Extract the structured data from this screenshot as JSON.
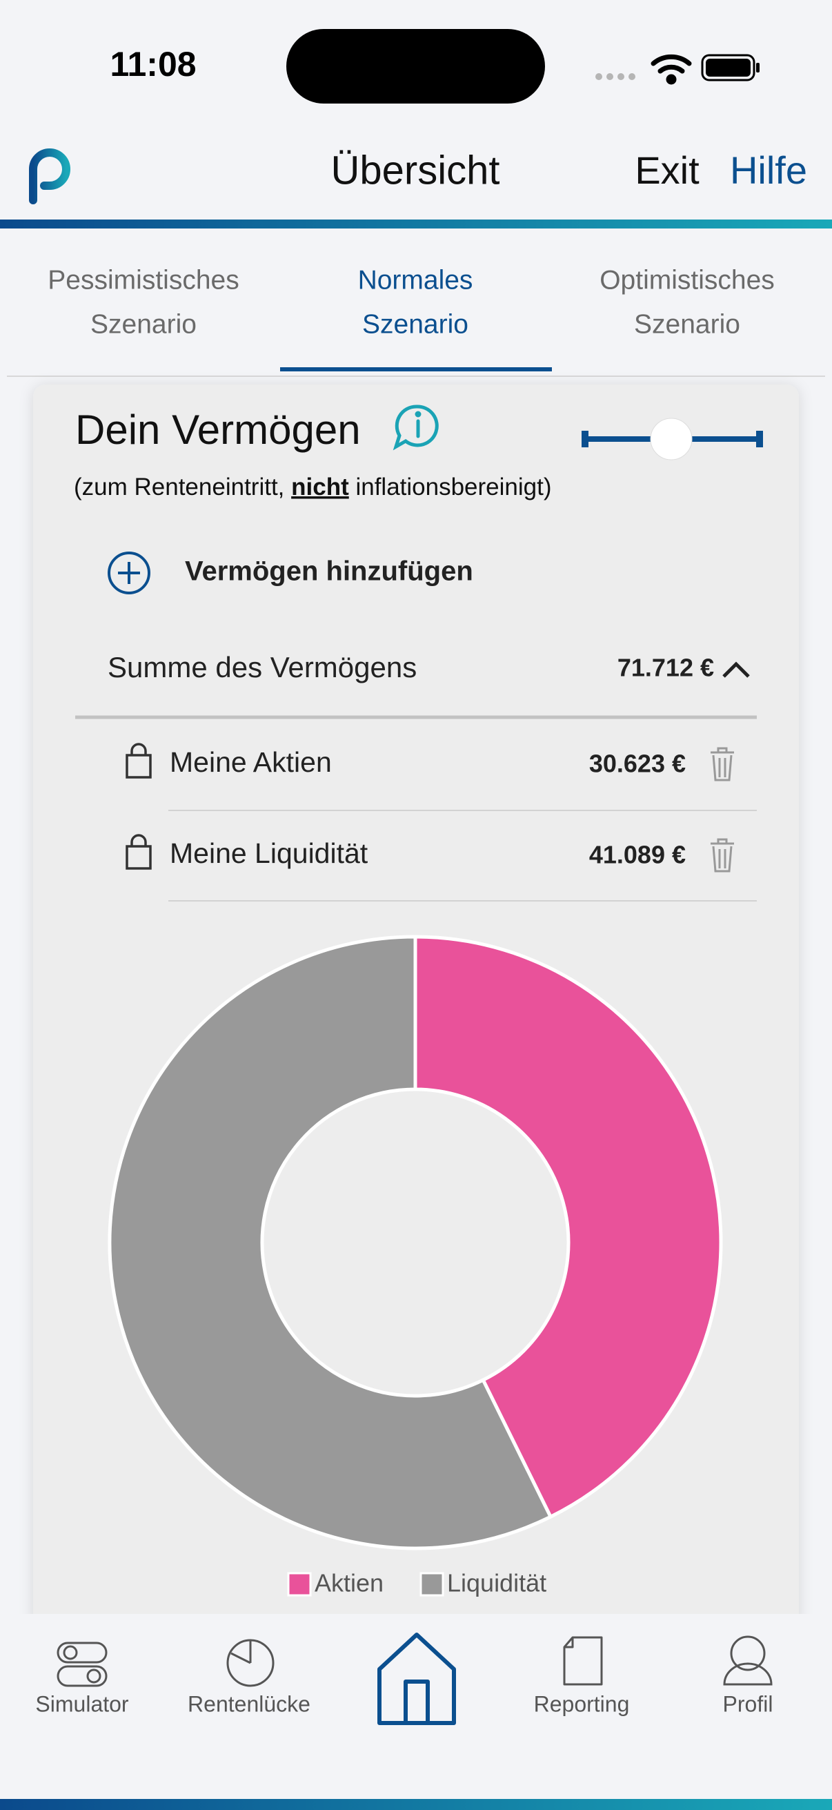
{
  "status_bar": {
    "time": "11:08"
  },
  "header": {
    "title": "Übersicht",
    "exit": "Exit",
    "help": "Hilfe"
  },
  "tabs": [
    {
      "lines": [
        "Pessimistisches",
        "Szenario"
      ]
    },
    {
      "lines": [
        "Normales",
        "Szenario"
      ]
    },
    {
      "lines": [
        "Optimistisches",
        "Szenario"
      ]
    }
  ],
  "card": {
    "title": "Dein Vermögen",
    "subtitle_before": "(zum Renteneintritt, ",
    "subtitle_emphasis": "nicht",
    "subtitle_after": " inflationsbereinigt)",
    "add_label": "Vermögen hinzufügen",
    "sum_label": "Summe des Vermögens",
    "sum_value": "71.712 €",
    "assets": [
      {
        "name": "Meine Aktien",
        "amount": "30.623 €"
      },
      {
        "name": "Meine Liquidität",
        "amount": "41.089 €"
      }
    ]
  },
  "chart_data": {
    "type": "pie",
    "categories": [
      "Aktien",
      "Liquidität"
    ],
    "values": [
      30623,
      41089
    ],
    "colors": [
      "#e9529a",
      "#999999"
    ]
  },
  "nav": [
    "Simulator",
    "Rentenlücke",
    "Reporting",
    "Profil"
  ]
}
